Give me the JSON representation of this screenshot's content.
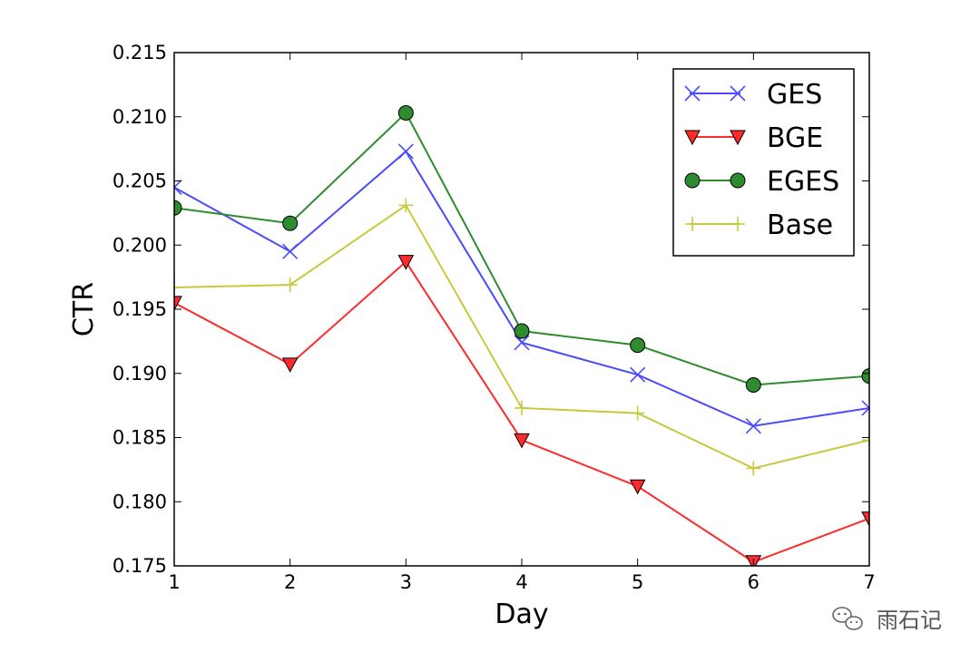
{
  "chart_data": {
    "type": "line",
    "title": "",
    "xlabel": "Day",
    "ylabel": "CTR",
    "x": [
      1,
      2,
      3,
      4,
      5,
      6,
      7
    ],
    "xlim": [
      1,
      7
    ],
    "ylim": [
      0.175,
      0.215
    ],
    "x_ticks": [
      "1",
      "2",
      "3",
      "4",
      "5",
      "6",
      "7"
    ],
    "y_ticks": [
      "0.175",
      "0.180",
      "0.185",
      "0.190",
      "0.195",
      "0.200",
      "0.205",
      "0.210",
      "0.215"
    ],
    "grid": false,
    "legend_position": "top-right",
    "series": [
      {
        "name": "GES",
        "color": "#4a4aff",
        "marker": "x",
        "values": [
          0.2045,
          0.1995,
          0.2073,
          0.1924,
          0.1899,
          0.1859,
          0.1873
        ]
      },
      {
        "name": "BGE",
        "color": "#ff2a2a",
        "marker": "triangle-down",
        "values": [
          0.1955,
          0.1907,
          0.1987,
          0.1848,
          0.1812,
          0.1753,
          0.1787
        ]
      },
      {
        "name": "EGES",
        "color": "#2e8b2e",
        "marker": "circle",
        "values": [
          0.2029,
          0.2017,
          0.2103,
          0.1933,
          0.1922,
          0.1891,
          0.1898
        ]
      },
      {
        "name": "Base",
        "color": "#c8c83c",
        "marker": "plus",
        "values": [
          0.1967,
          0.1969,
          0.2031,
          0.1873,
          0.1869,
          0.1826,
          0.1848
        ]
      }
    ]
  },
  "watermark": {
    "icon": "wechat-icon",
    "text": "雨石记"
  }
}
